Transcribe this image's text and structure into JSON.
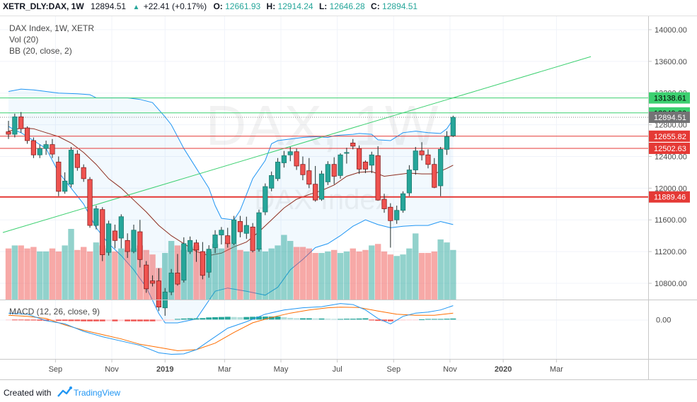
{
  "header": {
    "symbol": "XETR_DLY:DAX, 1W",
    "last": "12894.51",
    "change": "+22.41 (+0.17%)",
    "o_label": "O:",
    "o_value": "12661.93",
    "h_label": "H:",
    "h_value": "12914.24",
    "l_label": "L:",
    "l_value": "12646.28",
    "c_label": "C:",
    "c_value": "12894.51",
    "up_arrow": "▲"
  },
  "legend": {
    "line1": "DAX Index, 1W, XETR",
    "line2": "Vol (20)",
    "line3": "BB (20, close, 2)"
  },
  "watermark": {
    "big": "DAX, 1W",
    "small": "DAX Index"
  },
  "macd_label": "MACD (12, 26, close, 9)",
  "footer": {
    "created_with": "Created with",
    "brand": "TradingView"
  },
  "colors": {
    "up": "#26a69a",
    "down": "#ef5350",
    "up_fill": "#26a69a",
    "down_fill": "#ef5350",
    "bb_band": "#2196f3",
    "bb_basis": "#8d2d1f",
    "line_green": "#3cd070",
    "line_red": "#e53935",
    "macd_line": "#2196f3",
    "signal_line": "#ff6d00",
    "price_label": "#737375"
  },
  "chart_data": {
    "type": "candlestick",
    "y_axis": {
      "ylim": [
        10550,
        14080
      ],
      "ticks": [
        "14000.00",
        "13600.00",
        "13200.00",
        "12800.00",
        "12400.00",
        "12000.00",
        "11600.00",
        "11200.00",
        "10800.00"
      ],
      "tick_values": [
        14000,
        13600,
        13200,
        12800,
        12400,
        12000,
        11600,
        11200,
        10800
      ]
    },
    "x_axis": {
      "labels": [
        "Sep",
        "Nov",
        "2019",
        "Mar",
        "May",
        "Jul",
        "Sep",
        "Nov",
        "2020",
        "Mar"
      ],
      "label_bar_index": [
        7.5,
        16.5,
        25,
        34.5,
        43.5,
        52.5,
        61.5,
        70.5,
        79,
        87.5
      ],
      "bold_labels": [
        "2019",
        "2020"
      ]
    },
    "price_levels": [
      {
        "value": 13138.61,
        "label": "13138.61",
        "kind": "green"
      },
      {
        "value": 12949.66,
        "label": "12949.66",
        "kind": "green"
      },
      {
        "value": 12894.51,
        "label": "12894.51",
        "kind": "last"
      },
      {
        "value": 12655.82,
        "label": "12655.82",
        "kind": "red"
      },
      {
        "value": 12502.63,
        "label": "12502.63",
        "kind": "red"
      },
      {
        "value": 11889.46,
        "label": "11889.46",
        "kind": "red"
      }
    ],
    "trendline": {
      "from": [
        0,
        11440
      ],
      "to": [
        93,
        13660
      ]
    },
    "candles": [
      [
        12712,
        12850,
        12620,
        12680
      ],
      [
        12680,
        12940,
        12640,
        12900
      ],
      [
        12900,
        12960,
        12700,
        12750
      ],
      [
        12760,
        12780,
        12560,
        12600
      ],
      [
        12600,
        12640,
        12380,
        12420
      ],
      [
        12420,
        12550,
        12380,
        12500
      ],
      [
        12500,
        12600,
        12420,
        12550
      ],
      [
        12550,
        12620,
        12380,
        12430
      ],
      [
        12330,
        12400,
        11900,
        11960
      ],
      [
        11960,
        12200,
        11930,
        12090
      ],
      [
        12050,
        12520,
        12010,
        12480
      ],
      [
        12430,
        12480,
        12220,
        12260
      ],
      [
        12260,
        12300,
        12080,
        12120
      ],
      [
        12110,
        12140,
        11500,
        11530
      ],
      [
        11530,
        11780,
        11480,
        11740
      ],
      [
        11730,
        11760,
        11080,
        11160
      ],
      [
        11190,
        11590,
        11150,
        11550
      ],
      [
        11460,
        11540,
        11240,
        11340
      ],
      [
        11370,
        11670,
        11240,
        11640
      ],
      [
        11340,
        11430,
        11120,
        11200
      ],
      [
        11200,
        11540,
        11180,
        11470
      ],
      [
        11450,
        11600,
        11000,
        11100
      ],
      [
        11030,
        11080,
        10680,
        10730
      ],
      [
        10830,
        10900,
        10760,
        10800
      ],
      [
        10830,
        10990,
        10450,
        10500
      ],
      [
        10490,
        10740,
        10390,
        10690
      ],
      [
        10690,
        10980,
        10650,
        10930
      ],
      [
        10930,
        11170,
        10770,
        10790
      ],
      [
        10840,
        11380,
        10810,
        11300
      ],
      [
        11200,
        11390,
        11170,
        11340
      ],
      [
        11310,
        11350,
        11070,
        11220
      ],
      [
        11200,
        11320,
        10850,
        10900
      ],
      [
        10940,
        11280,
        10870,
        11230
      ],
      [
        11250,
        11470,
        11180,
        11410
      ],
      [
        11410,
        11510,
        11290,
        11470
      ],
      [
        11400,
        11500,
        11250,
        11300
      ],
      [
        11300,
        11650,
        11280,
        11600
      ],
      [
        11580,
        11650,
        11380,
        11450
      ],
      [
        11430,
        11640,
        11360,
        11530
      ],
      [
        11510,
        11560,
        11190,
        11210
      ],
      [
        11230,
        11730,
        11200,
        11690
      ],
      [
        11700,
        12060,
        11660,
        12020
      ],
      [
        12000,
        12210,
        11960,
        12160
      ],
      [
        12120,
        12380,
        12090,
        12330
      ],
      [
        12320,
        12470,
        12260,
        12410
      ],
      [
        12420,
        12520,
        12340,
        12460
      ],
      [
        12460,
        12500,
        12230,
        12280
      ],
      [
        12300,
        12400,
        12100,
        12170
      ],
      [
        12220,
        12380,
        12000,
        12050
      ],
      [
        12050,
        12280,
        11830,
        11850
      ],
      [
        11860,
        12220,
        11840,
        12180
      ],
      [
        12080,
        12340,
        12040,
        12300
      ],
      [
        12300,
        12390,
        12050,
        12150
      ],
      [
        12160,
        12440,
        12120,
        12420
      ],
      [
        12440,
        12510,
        12310,
        12450
      ],
      [
        12570,
        12620,
        12490,
        12530
      ],
      [
        12500,
        12540,
        12180,
        12240
      ],
      [
        12330,
        12350,
        12190,
        12240
      ],
      [
        12290,
        12460,
        12190,
        12420
      ],
      [
        12410,
        12530,
        11840,
        11850
      ],
      [
        11860,
        11930,
        11690,
        11740
      ],
      [
        11760,
        11810,
        11250,
        11590
      ],
      [
        11600,
        11780,
        11550,
        11720
      ],
      [
        11720,
        11960,
        11690,
        11930
      ],
      [
        11940,
        12290,
        11900,
        12230
      ],
      [
        12230,
        12520,
        12170,
        12470
      ],
      [
        12470,
        12580,
        12350,
        12420
      ],
      [
        12420,
        12490,
        12250,
        12300
      ],
      [
        12300,
        12380,
        12000,
        12010
      ],
      [
        12030,
        12520,
        11900,
        12490
      ],
      [
        12490,
        12720,
        12420,
        12650
      ],
      [
        12661.93,
        12914.24,
        12646.28,
        12894.51
      ]
    ],
    "bb_upper": [
      [
        0,
        13220
      ],
      [
        2,
        13250
      ],
      [
        4,
        13240
      ],
      [
        6,
        13220
      ],
      [
        8,
        13200
      ],
      [
        11,
        13190
      ],
      [
        13,
        13180
      ],
      [
        14,
        13140
      ],
      [
        16,
        13140
      ],
      [
        19,
        13140
      ],
      [
        21,
        13120
      ],
      [
        23,
        13080
      ],
      [
        25,
        12900
      ],
      [
        26,
        12800
      ],
      [
        28,
        12500
      ],
      [
        30,
        12250
      ],
      [
        32,
        12000
      ],
      [
        33,
        11780
      ],
      [
        34,
        11620
      ],
      [
        36,
        11600
      ],
      [
        37,
        11720
      ],
      [
        38,
        11920
      ],
      [
        39,
        12120
      ],
      [
        41,
        12350
      ],
      [
        42,
        12560
      ],
      [
        43,
        12600
      ],
      [
        45,
        12620
      ],
      [
        47,
        12640
      ],
      [
        49,
        12650
      ],
      [
        51,
        12640
      ],
      [
        52,
        12660
      ],
      [
        53,
        12670
      ],
      [
        55,
        12680
      ],
      [
        56,
        12690
      ],
      [
        58,
        12680
      ],
      [
        59,
        12610
      ],
      [
        61,
        12600
      ],
      [
        62,
        12650
      ],
      [
        63,
        12700
      ],
      [
        65,
        12720
      ],
      [
        67,
        12700
      ],
      [
        69,
        12690
      ],
      [
        70,
        12750
      ],
      [
        71,
        12870
      ]
    ],
    "bb_basis": [
      [
        0,
        12720
      ],
      [
        2,
        12760
      ],
      [
        4,
        12750
      ],
      [
        6,
        12700
      ],
      [
        8,
        12650
      ],
      [
        10,
        12570
      ],
      [
        12,
        12450
      ],
      [
        14,
        12300
      ],
      [
        16,
        12120
      ],
      [
        18,
        12000
      ],
      [
        20,
        11850
      ],
      [
        22,
        11700
      ],
      [
        24,
        11530
      ],
      [
        26,
        11400
      ],
      [
        28,
        11300
      ],
      [
        30,
        11200
      ],
      [
        32,
        11150
      ],
      [
        34,
        11180
      ],
      [
        36,
        11260
      ],
      [
        38,
        11320
      ],
      [
        40,
        11450
      ],
      [
        42,
        11600
      ],
      [
        44,
        11750
      ],
      [
        46,
        11860
      ],
      [
        48,
        11920
      ],
      [
        50,
        11970
      ],
      [
        52,
        12040
      ],
      [
        54,
        12150
      ],
      [
        56,
        12200
      ],
      [
        58,
        12210
      ],
      [
        60,
        12150
      ],
      [
        62,
        12170
      ],
      [
        64,
        12190
      ],
      [
        66,
        12180
      ],
      [
        68,
        12180
      ],
      [
        70,
        12250
      ],
      [
        71,
        12290
      ]
    ],
    "bb_lower": [
      [
        0,
        12780
      ],
      [
        1,
        12730
      ],
      [
        2,
        12700
      ],
      [
        4,
        12600
      ],
      [
        6,
        12500
      ],
      [
        8,
        12200
      ],
      [
        10,
        12000
      ],
      [
        12,
        11800
      ],
      [
        14,
        11500
      ],
      [
        16,
        11300
      ],
      [
        18,
        11150
      ],
      [
        20,
        10970
      ],
      [
        22,
        10750
      ],
      [
        24,
        10420
      ],
      [
        25,
        10300
      ],
      [
        27,
        10300
      ],
      [
        30,
        10350
      ],
      [
        33,
        10700
      ],
      [
        35,
        10740
      ],
      [
        38,
        10700
      ],
      [
        41,
        10650
      ],
      [
        43,
        10750
      ],
      [
        45,
        10970
      ],
      [
        47,
        11100
      ],
      [
        49,
        11250
      ],
      [
        51,
        11300
      ],
      [
        53,
        11400
      ],
      [
        55,
        11520
      ],
      [
        57,
        11600
      ],
      [
        59,
        11540
      ],
      [
        61,
        11500
      ],
      [
        63,
        11520
      ],
      [
        65,
        11530
      ],
      [
        67,
        11530
      ],
      [
        69,
        11580
      ],
      [
        71,
        11540
      ]
    ],
    "volume": [
      34,
      36,
      36,
      34,
      35,
      32,
      32,
      34,
      32,
      36,
      47,
      33,
      35,
      32,
      38,
      36,
      34,
      32,
      34,
      33,
      34,
      36,
      33,
      30,
      21,
      31,
      39,
      36,
      33,
      35,
      36,
      31,
      32,
      37,
      34,
      38,
      37,
      33,
      32,
      32,
      34,
      32,
      34,
      36,
      43,
      39,
      35,
      35,
      34,
      31,
      31,
      32,
      33,
      31,
      32,
      34,
      32,
      33,
      36,
      37,
      32,
      30,
      29,
      30,
      34,
      44,
      31,
      31,
      32,
      40,
      38,
      33
    ],
    "volume_max": 47,
    "macd": {
      "macd_line": [
        [
          0,
          30
        ],
        [
          3,
          25
        ],
        [
          6,
          -5
        ],
        [
          9,
          -20
        ],
        [
          12,
          -55
        ],
        [
          15,
          -80
        ],
        [
          18,
          -100
        ],
        [
          21,
          -120
        ],
        [
          24,
          -155
        ],
        [
          26,
          -162
        ],
        [
          28,
          -160
        ],
        [
          30,
          -140
        ],
        [
          32,
          -100
        ],
        [
          35,
          -40
        ],
        [
          38,
          -10
        ],
        [
          41,
          25
        ],
        [
          44,
          45
        ],
        [
          47,
          55
        ],
        [
          50,
          60
        ],
        [
          53,
          75
        ],
        [
          55,
          70
        ],
        [
          57,
          45
        ],
        [
          59,
          5
        ],
        [
          61,
          -20
        ],
        [
          63,
          15
        ],
        [
          65,
          30
        ],
        [
          67,
          35
        ],
        [
          69,
          45
        ],
        [
          71,
          65
        ]
      ],
      "signal_line": [
        [
          0,
          20
        ],
        [
          3,
          15
        ],
        [
          6,
          5
        ],
        [
          9,
          -25
        ],
        [
          12,
          -50
        ],
        [
          15,
          -70
        ],
        [
          18,
          -90
        ],
        [
          21,
          -115
        ],
        [
          24,
          -130
        ],
        [
          27,
          -145
        ],
        [
          30,
          -140
        ],
        [
          33,
          -110
        ],
        [
          36,
          -60
        ],
        [
          39,
          -15
        ],
        [
          42,
          10
        ],
        [
          45,
          30
        ],
        [
          48,
          45
        ],
        [
          51,
          55
        ],
        [
          53,
          58
        ],
        [
          56,
          56
        ],
        [
          59,
          40
        ],
        [
          62,
          25
        ],
        [
          65,
          20
        ],
        [
          68,
          20
        ],
        [
          71,
          30
        ]
      ],
      "histogram": [
        -2,
        -3,
        -3,
        -4,
        -4,
        -5,
        -6,
        -5,
        -6,
        -6,
        -7,
        -7,
        -8,
        -8,
        -8,
        -8,
        -7,
        -8,
        -7,
        -8,
        -8,
        -8,
        -8,
        -8,
        -7,
        -4,
        -3,
        3,
        5,
        6,
        6,
        7,
        10,
        11,
        12,
        13,
        12,
        11,
        12,
        13,
        14,
        14,
        14,
        14,
        11,
        8,
        6,
        6,
        6,
        5,
        5,
        4,
        3,
        3,
        4,
        4,
        5,
        6,
        -4,
        -6,
        -7,
        -8,
        -5,
        -4,
        -3,
        -2,
        1,
        3,
        3,
        3,
        4,
        5
      ],
      "ylim": [
        -180,
        90
      ],
      "tick": "0.00"
    }
  }
}
